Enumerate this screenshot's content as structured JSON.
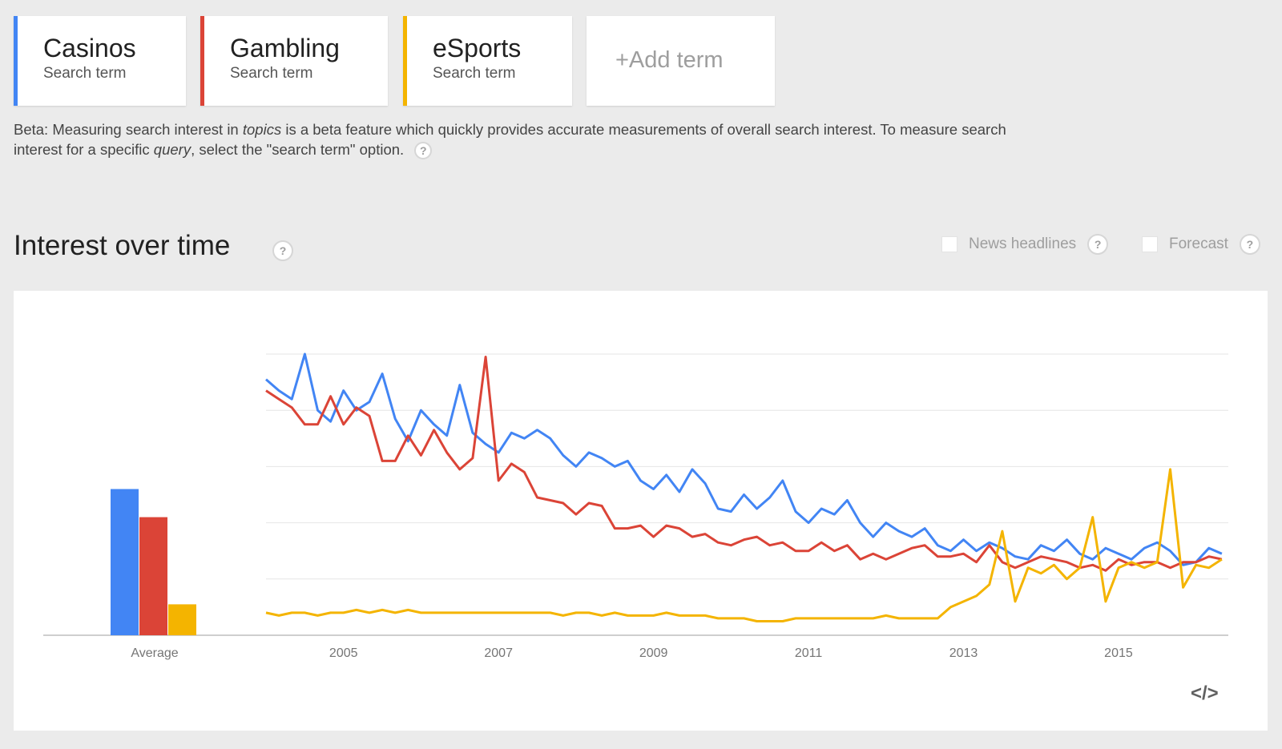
{
  "terms": [
    {
      "name": "Casinos",
      "type": "Search term",
      "color": "#4285f4"
    },
    {
      "name": "Gambling",
      "type": "Search term",
      "color": "#db4437"
    },
    {
      "name": "eSports",
      "type": "Search term",
      "color": "#f4b400"
    }
  ],
  "add_term": "+Add term",
  "beta": {
    "prefix": "Beta: Measuring search interest in ",
    "topics": "topics",
    "middle": " is a beta feature which quickly provides accurate measurements of overall search interest. To measure search interest for a specific ",
    "query": "query",
    "suffix": ", select the \"search term\" option."
  },
  "section": {
    "title": "Interest over time",
    "news_headlines": "News headlines",
    "forecast": "Forecast",
    "help_glyph": "?"
  },
  "embed_icon": "code-icon",
  "chart_data": {
    "type": "line",
    "xlabel": "",
    "ylabel": "",
    "ylim": [
      0,
      100
    ],
    "grid": true,
    "x_start": "2004-01",
    "x_end": "2016-06",
    "x_ticks": [
      "2005",
      "2007",
      "2009",
      "2011",
      "2013",
      "2015"
    ],
    "average_label": "Average",
    "averages": [
      {
        "name": "Casinos",
        "value": 52
      },
      {
        "name": "Gambling",
        "value": 42
      },
      {
        "name": "eSports",
        "value": 11
      }
    ],
    "series": [
      {
        "name": "Casinos",
        "color": "#4285f4",
        "points": [
          [
            "2004-01",
            91
          ],
          [
            "2004-03",
            87
          ],
          [
            "2004-05",
            84
          ],
          [
            "2004-07",
            100
          ],
          [
            "2004-09",
            80
          ],
          [
            "2004-11",
            76
          ],
          [
            "2005-01",
            87
          ],
          [
            "2005-03",
            80
          ],
          [
            "2005-05",
            83
          ],
          [
            "2005-07",
            93
          ],
          [
            "2005-09",
            77
          ],
          [
            "2005-11",
            69
          ],
          [
            "2006-01",
            80
          ],
          [
            "2006-03",
            75
          ],
          [
            "2006-05",
            71
          ],
          [
            "2006-07",
            89
          ],
          [
            "2006-09",
            72
          ],
          [
            "2006-11",
            68
          ],
          [
            "2007-01",
            65
          ],
          [
            "2007-03",
            72
          ],
          [
            "2007-05",
            70
          ],
          [
            "2007-07",
            73
          ],
          [
            "2007-09",
            70
          ],
          [
            "2007-11",
            64
          ],
          [
            "2008-01",
            60
          ],
          [
            "2008-03",
            65
          ],
          [
            "2008-05",
            63
          ],
          [
            "2008-07",
            60
          ],
          [
            "2008-09",
            62
          ],
          [
            "2008-11",
            55
          ],
          [
            "2009-01",
            52
          ],
          [
            "2009-03",
            57
          ],
          [
            "2009-05",
            51
          ],
          [
            "2009-07",
            59
          ],
          [
            "2009-09",
            54
          ],
          [
            "2009-11",
            45
          ],
          [
            "2010-01",
            44
          ],
          [
            "2010-03",
            50
          ],
          [
            "2010-05",
            45
          ],
          [
            "2010-07",
            49
          ],
          [
            "2010-09",
            55
          ],
          [
            "2010-11",
            44
          ],
          [
            "2011-01",
            40
          ],
          [
            "2011-03",
            45
          ],
          [
            "2011-05",
            43
          ],
          [
            "2011-07",
            48
          ],
          [
            "2011-09",
            40
          ],
          [
            "2011-11",
            35
          ],
          [
            "2012-01",
            40
          ],
          [
            "2012-03",
            37
          ],
          [
            "2012-05",
            35
          ],
          [
            "2012-07",
            38
          ],
          [
            "2012-09",
            32
          ],
          [
            "2012-11",
            30
          ],
          [
            "2013-01",
            34
          ],
          [
            "2013-03",
            30
          ],
          [
            "2013-05",
            33
          ],
          [
            "2013-07",
            31
          ],
          [
            "2013-09",
            28
          ],
          [
            "2013-11",
            27
          ],
          [
            "2014-01",
            32
          ],
          [
            "2014-03",
            30
          ],
          [
            "2014-05",
            34
          ],
          [
            "2014-07",
            29
          ],
          [
            "2014-09",
            27
          ],
          [
            "2014-11",
            31
          ],
          [
            "2015-01",
            29
          ],
          [
            "2015-03",
            27
          ],
          [
            "2015-05",
            31
          ],
          [
            "2015-07",
            33
          ],
          [
            "2015-09",
            30
          ],
          [
            "2015-11",
            25
          ],
          [
            "2016-01",
            26
          ],
          [
            "2016-03",
            31
          ],
          [
            "2016-05",
            29
          ]
        ]
      },
      {
        "name": "Gambling",
        "color": "#db4437",
        "points": [
          [
            "2004-01",
            87
          ],
          [
            "2004-03",
            84
          ],
          [
            "2004-05",
            81
          ],
          [
            "2004-07",
            75
          ],
          [
            "2004-09",
            75
          ],
          [
            "2004-11",
            85
          ],
          [
            "2005-01",
            75
          ],
          [
            "2005-03",
            81
          ],
          [
            "2005-05",
            78
          ],
          [
            "2005-07",
            62
          ],
          [
            "2005-09",
            62
          ],
          [
            "2005-11",
            71
          ],
          [
            "2006-01",
            64
          ],
          [
            "2006-03",
            73
          ],
          [
            "2006-05",
            65
          ],
          [
            "2006-07",
            59
          ],
          [
            "2006-09",
            63
          ],
          [
            "2006-11",
            99
          ],
          [
            "2007-01",
            55
          ],
          [
            "2007-03",
            61
          ],
          [
            "2007-05",
            58
          ],
          [
            "2007-07",
            49
          ],
          [
            "2007-09",
            48
          ],
          [
            "2007-11",
            47
          ],
          [
            "2008-01",
            43
          ],
          [
            "2008-03",
            47
          ],
          [
            "2008-05",
            46
          ],
          [
            "2008-07",
            38
          ],
          [
            "2008-09",
            38
          ],
          [
            "2008-11",
            39
          ],
          [
            "2009-01",
            35
          ],
          [
            "2009-03",
            39
          ],
          [
            "2009-05",
            38
          ],
          [
            "2009-07",
            35
          ],
          [
            "2009-09",
            36
          ],
          [
            "2009-11",
            33
          ],
          [
            "2010-01",
            32
          ],
          [
            "2010-03",
            34
          ],
          [
            "2010-05",
            35
          ],
          [
            "2010-07",
            32
          ],
          [
            "2010-09",
            33
          ],
          [
            "2010-11",
            30
          ],
          [
            "2011-01",
            30
          ],
          [
            "2011-03",
            33
          ],
          [
            "2011-05",
            30
          ],
          [
            "2011-07",
            32
          ],
          [
            "2011-09",
            27
          ],
          [
            "2011-11",
            29
          ],
          [
            "2012-01",
            27
          ],
          [
            "2012-03",
            29
          ],
          [
            "2012-05",
            31
          ],
          [
            "2012-07",
            32
          ],
          [
            "2012-09",
            28
          ],
          [
            "2012-11",
            28
          ],
          [
            "2013-01",
            29
          ],
          [
            "2013-03",
            26
          ],
          [
            "2013-05",
            32
          ],
          [
            "2013-07",
            26
          ],
          [
            "2013-09",
            24
          ],
          [
            "2013-11",
            26
          ],
          [
            "2014-01",
            28
          ],
          [
            "2014-03",
            27
          ],
          [
            "2014-05",
            26
          ],
          [
            "2014-07",
            24
          ],
          [
            "2014-09",
            25
          ],
          [
            "2014-11",
            23
          ],
          [
            "2015-01",
            27
          ],
          [
            "2015-03",
            25
          ],
          [
            "2015-05",
            26
          ],
          [
            "2015-07",
            26
          ],
          [
            "2015-09",
            24
          ],
          [
            "2015-11",
            26
          ],
          [
            "2016-01",
            26
          ],
          [
            "2016-03",
            28
          ],
          [
            "2016-05",
            27
          ]
        ]
      },
      {
        "name": "eSports",
        "color": "#f4b400",
        "points": [
          [
            "2004-01",
            8
          ],
          [
            "2004-03",
            7
          ],
          [
            "2004-05",
            8
          ],
          [
            "2004-07",
            8
          ],
          [
            "2004-09",
            7
          ],
          [
            "2004-11",
            8
          ],
          [
            "2005-01",
            8
          ],
          [
            "2005-03",
            9
          ],
          [
            "2005-05",
            8
          ],
          [
            "2005-07",
            9
          ],
          [
            "2005-09",
            8
          ],
          [
            "2005-11",
            9
          ],
          [
            "2006-01",
            8
          ],
          [
            "2006-03",
            8
          ],
          [
            "2006-05",
            8
          ],
          [
            "2006-07",
            8
          ],
          [
            "2006-09",
            8
          ],
          [
            "2006-11",
            8
          ],
          [
            "2007-01",
            8
          ],
          [
            "2007-03",
            8
          ],
          [
            "2007-05",
            8
          ],
          [
            "2007-07",
            8
          ],
          [
            "2007-09",
            8
          ],
          [
            "2007-11",
            7
          ],
          [
            "2008-01",
            8
          ],
          [
            "2008-03",
            8
          ],
          [
            "2008-05",
            7
          ],
          [
            "2008-07",
            8
          ],
          [
            "2008-09",
            7
          ],
          [
            "2008-11",
            7
          ],
          [
            "2009-01",
            7
          ],
          [
            "2009-03",
            8
          ],
          [
            "2009-05",
            7
          ],
          [
            "2009-07",
            7
          ],
          [
            "2009-09",
            7
          ],
          [
            "2009-11",
            6
          ],
          [
            "2010-01",
            6
          ],
          [
            "2010-03",
            6
          ],
          [
            "2010-05",
            5
          ],
          [
            "2010-07",
            5
          ],
          [
            "2010-09",
            5
          ],
          [
            "2010-11",
            6
          ],
          [
            "2011-01",
            6
          ],
          [
            "2011-03",
            6
          ],
          [
            "2011-05",
            6
          ],
          [
            "2011-07",
            6
          ],
          [
            "2011-09",
            6
          ],
          [
            "2011-11",
            6
          ],
          [
            "2012-01",
            7
          ],
          [
            "2012-03",
            6
          ],
          [
            "2012-05",
            6
          ],
          [
            "2012-07",
            6
          ],
          [
            "2012-09",
            6
          ],
          [
            "2012-11",
            10
          ],
          [
            "2013-01",
            12
          ],
          [
            "2013-03",
            14
          ],
          [
            "2013-05",
            18
          ],
          [
            "2013-07",
            37
          ],
          [
            "2013-09",
            12
          ],
          [
            "2013-11",
            24
          ],
          [
            "2014-01",
            22
          ],
          [
            "2014-03",
            25
          ],
          [
            "2014-05",
            20
          ],
          [
            "2014-07",
            24
          ],
          [
            "2014-09",
            42
          ],
          [
            "2014-11",
            12
          ],
          [
            "2015-01",
            24
          ],
          [
            "2015-03",
            26
          ],
          [
            "2015-05",
            24
          ],
          [
            "2015-07",
            26
          ],
          [
            "2015-09",
            59
          ],
          [
            "2015-11",
            17
          ],
          [
            "2016-01",
            25
          ],
          [
            "2016-03",
            24
          ],
          [
            "2016-05",
            27
          ]
        ]
      }
    ]
  }
}
